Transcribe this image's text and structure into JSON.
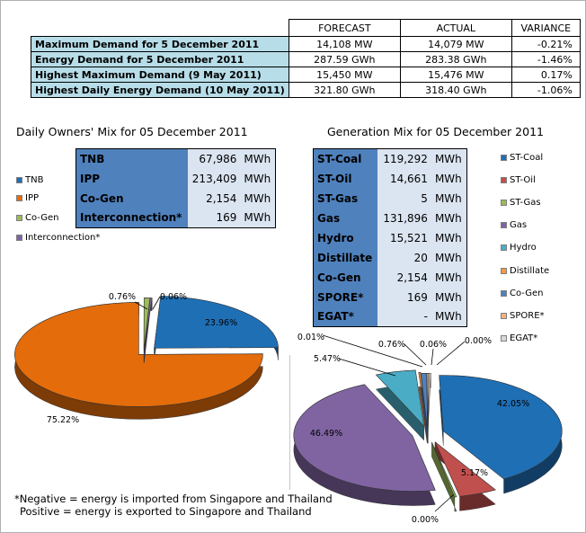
{
  "summary": {
    "headers": [
      "FORECAST",
      "ACTUAL",
      "VARIANCE"
    ],
    "rows": [
      {
        "label": "Maximum Demand for 5 December 2011",
        "forecast": "14,108  MW",
        "actual": "14,079  MW",
        "variance": "-0.21%"
      },
      {
        "label": "Energy Demand for 5 December 2011",
        "forecast": "287.59  GWh",
        "actual": "283.38  GWh",
        "variance": "-1.46%"
      },
      {
        "label": "Highest Maximum Demand (9 May 2011)",
        "forecast": "15,450  MW",
        "actual": "15,476  MW",
        "variance": "0.17%"
      },
      {
        "label": "Highest Daily Energy Demand (10 May 2011)",
        "forecast": "321.80  GWh",
        "actual": "318.40  GWh",
        "variance": "-1.06%"
      }
    ]
  },
  "owners": {
    "title": "Daily Owners' Mix for 05 December 2011",
    "rows": [
      {
        "source": "TNB",
        "value": "67,986",
        "unit": "MWh"
      },
      {
        "source": "IPP",
        "value": "213,409",
        "unit": "MWh"
      },
      {
        "source": "Co-Gen",
        "value": "2,154",
        "unit": "MWh"
      },
      {
        "source": "Interconnection*",
        "value": "169",
        "unit": "MWh"
      }
    ],
    "legend": [
      {
        "label": "TNB",
        "color": "#1f6fb5"
      },
      {
        "label": "IPP",
        "color": "#e46c0a"
      },
      {
        "label": "Co-Gen",
        "color": "#9bbb59"
      },
      {
        "label": "Interconnection*",
        "color": "#8064a2"
      }
    ]
  },
  "generation": {
    "title": "Generation Mix for 05 December 2011",
    "rows": [
      {
        "source": "ST-Coal",
        "value": "119,292",
        "unit": "MWh"
      },
      {
        "source": "ST-Oil",
        "value": "14,661",
        "unit": "MWh"
      },
      {
        "source": "ST-Gas",
        "value": "5",
        "unit": "MWh"
      },
      {
        "source": "Gas",
        "value": "131,896",
        "unit": "MWh"
      },
      {
        "source": "Hydro",
        "value": "15,521",
        "unit": "MWh"
      },
      {
        "source": "Distillate",
        "value": "20",
        "unit": "MWh"
      },
      {
        "source": "Co-Gen",
        "value": "2,154",
        "unit": "MWh"
      },
      {
        "source": "SPORE*",
        "value": "169",
        "unit": "MWh"
      },
      {
        "source": "EGAT*",
        "value": "-",
        "unit": "MWh"
      }
    ],
    "legend": [
      {
        "label": "ST-Coal",
        "color": "#1f6fb5"
      },
      {
        "label": "ST-Oil",
        "color": "#c0504d"
      },
      {
        "label": "ST-Gas",
        "color": "#9bbb59"
      },
      {
        "label": "Gas",
        "color": "#8064a2"
      },
      {
        "label": "Hydro",
        "color": "#4bacc6"
      },
      {
        "label": "Distillate",
        "color": "#f79646"
      },
      {
        "label": "Co-Gen",
        "color": "#4f81bd"
      },
      {
        "label": "SPORE*",
        "color": "#f5b183"
      },
      {
        "label": "EGAT*",
        "color": "#d9d9d9"
      }
    ]
  },
  "note": {
    "line1": "*Negative = energy is imported from Singapore and Thailand",
    "line2": "Positive = energy is exported to Singapore and Thailand"
  },
  "chart_data": [
    {
      "type": "pie",
      "title": "Daily Owners' Mix for 05 December 2011",
      "categories": [
        "TNB",
        "IPP",
        "Co-Gen",
        "Interconnection*"
      ],
      "values": [
        23.96,
        75.22,
        0.76,
        0.06
      ],
      "labels": [
        "23.96%",
        "75.22%",
        "0.76%",
        "0.06%"
      ],
      "colors": [
        "#1f6fb5",
        "#e46c0a",
        "#9bbb59",
        "#8064a2"
      ],
      "legend": "left"
    },
    {
      "type": "pie",
      "title": "Generation Mix for 05 December 2011",
      "categories": [
        "ST-Coal",
        "ST-Oil",
        "ST-Gas",
        "Gas",
        "Hydro",
        "Distillate",
        "Co-Gen",
        "SPORE*",
        "EGAT*"
      ],
      "values": [
        42.05,
        5.17,
        0.0,
        46.49,
        5.47,
        0.01,
        0.76,
        0.06,
        0.0
      ],
      "labels": [
        "42.05%",
        "5.17%",
        "0.00%",
        "46.49%",
        "5.47%",
        "0.01%",
        "0.76%",
        "0.06%",
        "0.00%"
      ],
      "colors": [
        "#1f6fb5",
        "#c0504d",
        "#9bbb59",
        "#8064a2",
        "#4bacc6",
        "#f79646",
        "#4f81bd",
        "#f5b183",
        "#d9d9d9"
      ],
      "legend": "right"
    }
  ]
}
